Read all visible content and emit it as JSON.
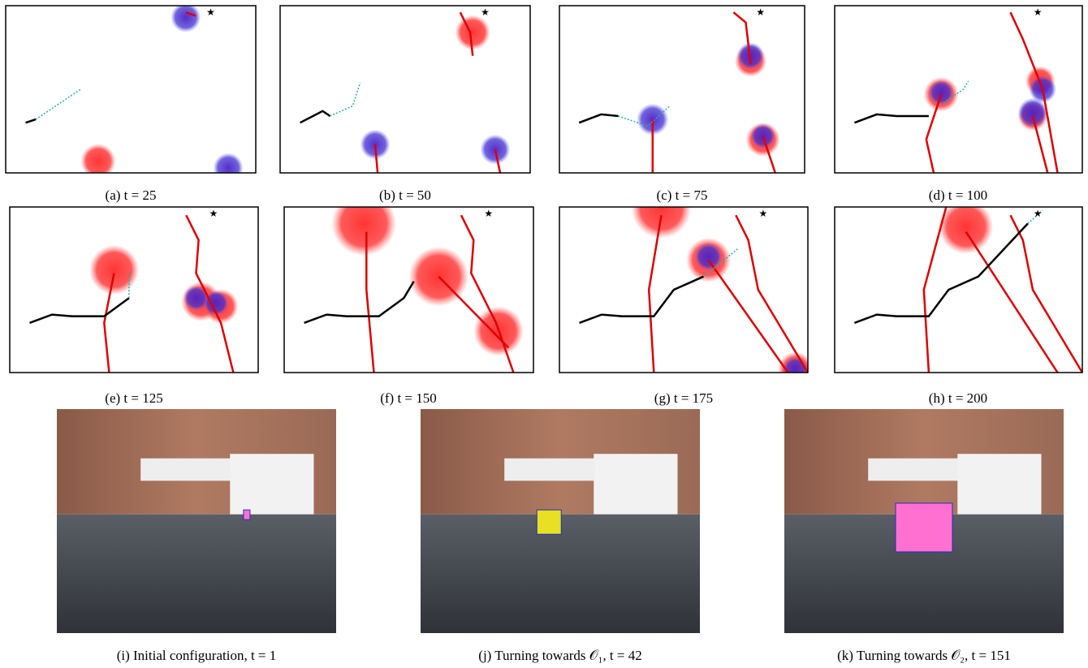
{
  "captions": {
    "row1": [
      "(a) t = 25",
      "(b) t = 50",
      "(c) t = 75",
      "(d) t = 100"
    ],
    "row2": [
      "(e) t = 125",
      "(f) t = 150",
      "(g) t = 175",
      "(h) t = 200"
    ],
    "row3": [
      "(i) Initial configuration, t = 1",
      "(j) Turning towards 𝒪₁, t = 42",
      "(k) Turning towards 𝒪₂, t = 151"
    ]
  }
}
